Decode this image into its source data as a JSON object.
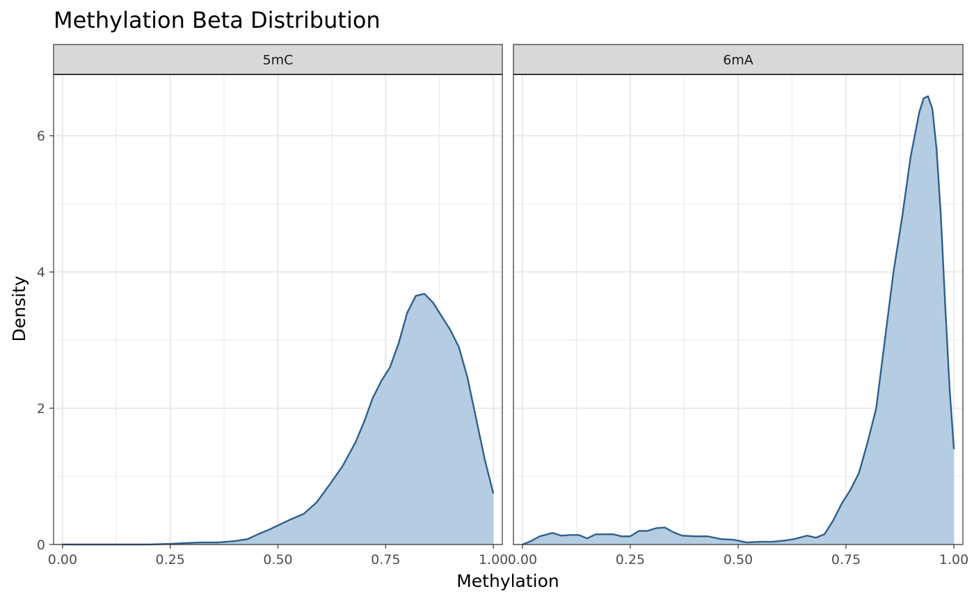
{
  "chart_data": {
    "type": "area",
    "title": "Methylation Beta Distribution",
    "xlabel": "Methylation",
    "ylabel": "Density",
    "xlim": [
      0,
      1
    ],
    "ylim": [
      0,
      6.9
    ],
    "x_ticks": [
      0,
      0.25,
      0.5,
      0.75,
      1
    ],
    "x_tick_labels": [
      "0.00",
      "0.25",
      "0.50",
      "0.75",
      "1.00"
    ],
    "y_ticks": [
      0,
      2,
      4,
      6
    ],
    "y_tick_labels": [
      "0",
      "2",
      "4",
      "6"
    ],
    "grid": true,
    "legend": "none",
    "line_color": "#2f5f8a",
    "fill_color": "#b4cde2",
    "strip_fill": "#d9d9d9",
    "panels": [
      {
        "label": "5mC",
        "x": [
          0,
          0.05,
          0.1,
          0.15,
          0.2,
          0.25,
          0.28,
          0.32,
          0.36,
          0.4,
          0.43,
          0.45,
          0.48,
          0.5,
          0.53,
          0.56,
          0.59,
          0.62,
          0.65,
          0.68,
          0.7,
          0.72,
          0.74,
          0.76,
          0.78,
          0.8,
          0.82,
          0.84,
          0.86,
          0.88,
          0.9,
          0.92,
          0.94,
          0.96,
          0.98,
          1.0
        ],
        "y": [
          0,
          0,
          0,
          0,
          0,
          0.01,
          0.02,
          0.03,
          0.03,
          0.05,
          0.08,
          0.14,
          0.22,
          0.28,
          0.37,
          0.45,
          0.62,
          0.88,
          1.15,
          1.5,
          1.8,
          2.15,
          2.4,
          2.6,
          2.95,
          3.4,
          3.65,
          3.68,
          3.55,
          3.35,
          3.15,
          2.9,
          2.45,
          1.85,
          1.25,
          0.75
        ]
      },
      {
        "label": "6mA",
        "x": [
          0,
          0.02,
          0.04,
          0.07,
          0.09,
          0.11,
          0.13,
          0.15,
          0.17,
          0.19,
          0.21,
          0.23,
          0.25,
          0.27,
          0.29,
          0.31,
          0.33,
          0.35,
          0.37,
          0.4,
          0.43,
          0.46,
          0.49,
          0.52,
          0.55,
          0.58,
          0.61,
          0.63,
          0.66,
          0.68,
          0.7,
          0.72,
          0.74,
          0.76,
          0.78,
          0.8,
          0.82,
          0.84,
          0.86,
          0.88,
          0.9,
          0.92,
          0.93,
          0.94,
          0.95,
          0.96,
          0.97,
          0.98,
          0.99,
          1.0
        ],
        "y": [
          0,
          0.05,
          0.12,
          0.17,
          0.13,
          0.14,
          0.14,
          0.09,
          0.15,
          0.15,
          0.15,
          0.12,
          0.12,
          0.2,
          0.2,
          0.24,
          0.25,
          0.18,
          0.13,
          0.12,
          0.12,
          0.08,
          0.07,
          0.03,
          0.04,
          0.04,
          0.06,
          0.08,
          0.13,
          0.1,
          0.15,
          0.35,
          0.6,
          0.8,
          1.05,
          1.5,
          2.0,
          3.0,
          4.0,
          4.8,
          5.7,
          6.35,
          6.55,
          6.58,
          6.4,
          5.8,
          4.8,
          3.5,
          2.3,
          1.4
        ]
      }
    ]
  }
}
